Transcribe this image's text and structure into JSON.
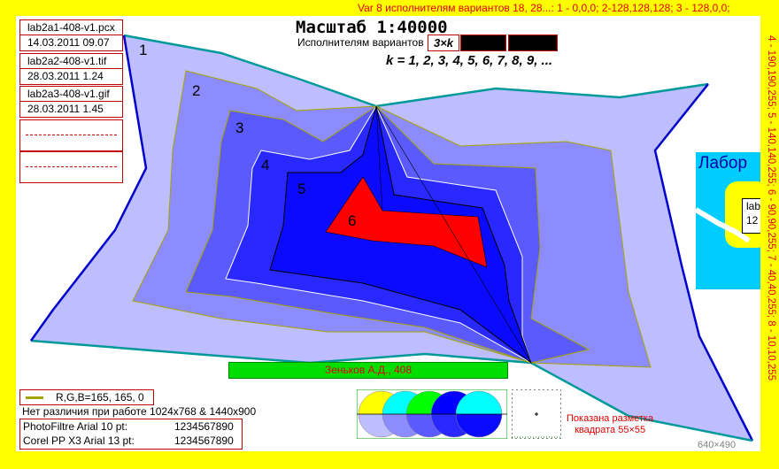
{
  "header": {
    "variant_line": "Var 8 исполнителям вариантов 18, 28...: 1 - 0,0,0; 2-128,128,128; 3 - 128,0,0;",
    "right_line": "4 - 190,190,255; 5 - 140,140,255; 6 - 90,90,255; 7 - 40,40,255; 8 - 10,10,255"
  },
  "files": [
    {
      "name": "lab2a1-408-v1.pcx",
      "date": "14.03.2011 09.07"
    },
    {
      "name": "lab2a2-408-v1.tif",
      "date": "28.03.2011 1.24"
    },
    {
      "name": "lab2a3-408-v1.gif",
      "date": "28.03.2011 1.45"
    }
  ],
  "scale_title": "Масштаб 1:40000",
  "variants_label": "Исполнителям вариантов",
  "variants_formula": "3×k",
  "k_line": "k = 1, 2, 3, 4, 5, 6, 7, 8, 9, ...",
  "zone_labels": [
    "1",
    "2",
    "3",
    "4",
    "5",
    "6"
  ],
  "author_bar": "Зеньков А.Д., 408",
  "legend_rgb": "R,G,B=165, 165, 0",
  "no_difference": "Нет различия при работе 1024х768 & 1440х900",
  "font_tests": [
    {
      "app": "PhotoFiltre  Arial  10 pt:",
      "digits": "1234567890"
    },
    {
      "app": "Corel PP X3  Arial 13 pt:",
      "digits": "1234567890"
    }
  ],
  "markup_note_line1": "Показана разметка",
  "markup_note_line2": "квадрата 55×55",
  "dimensions": "640×490",
  "lab_panel": {
    "title": "Лабор",
    "line1": "lab",
    "line2": "12"
  },
  "colors": {
    "background": "#ffff00",
    "zone1": "#bebeff",
    "zone2": "#8c8cff",
    "zone3": "#5a5aff",
    "zone4": "#2828ff",
    "zone5": "#0a0aff",
    "zone6": "#ff0000",
    "outline": "#a5a500",
    "boundary_teal": "#009999",
    "boundary_blue": "#0000cc"
  }
}
